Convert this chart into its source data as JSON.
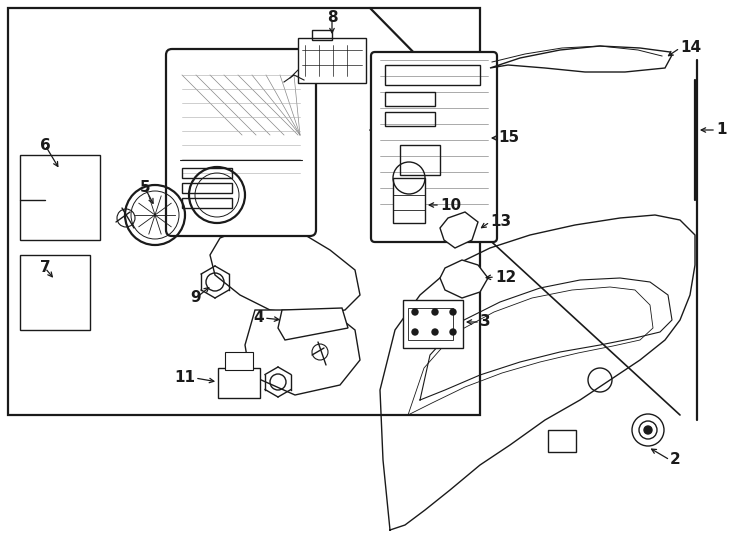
{
  "bg_color": "#ffffff",
  "line_color": "#1a1a1a",
  "fig_width": 7.34,
  "fig_height": 5.4,
  "dpi": 100,
  "lw": 1.0,
  "lw_thick": 1.6,
  "label_fontsize": 11
}
